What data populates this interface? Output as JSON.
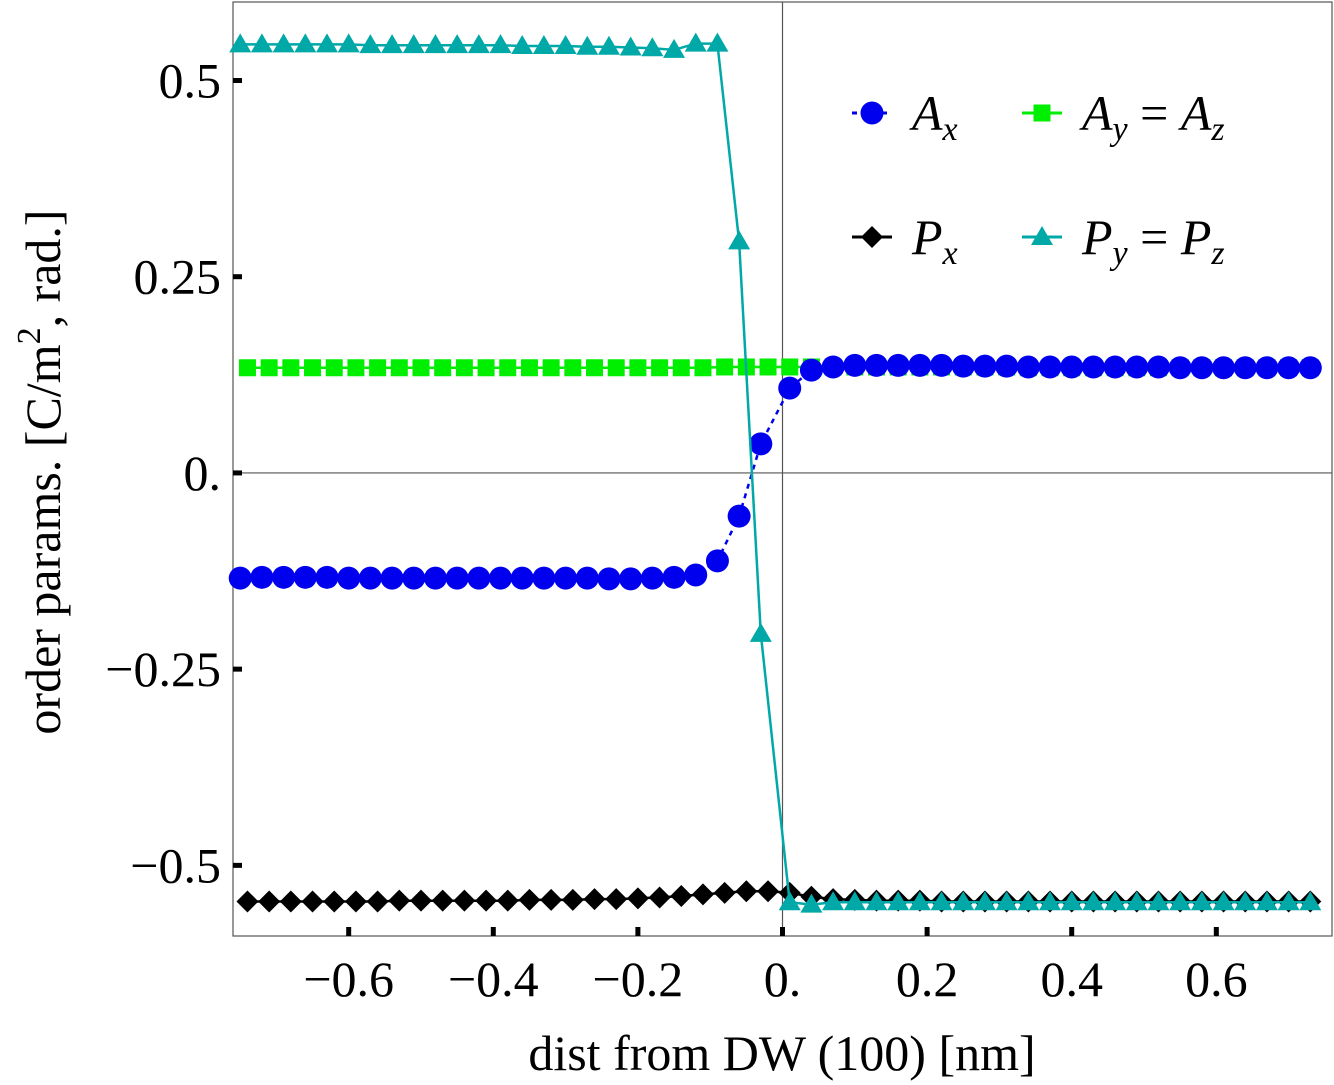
{
  "chart_data": {
    "type": "line",
    "xlabel": "dist from DW (100) [nm]",
    "ylabel": "order params. [C/m",
    "ylabel_sup": "2",
    "ylabel_end": ", rad.]",
    "xlim": [
      -0.76,
      0.76
    ],
    "ylim": [
      -0.59,
      0.6
    ],
    "xticks": [
      {
        "v": -0.6,
        "label": "−0.6"
      },
      {
        "v": -0.4,
        "label": "−0.4"
      },
      {
        "v": -0.2,
        "label": "−0.2"
      },
      {
        "v": 0.0,
        "label": "0."
      },
      {
        "v": 0.2,
        "label": "0.2"
      },
      {
        "v": 0.4,
        "label": "0.4"
      },
      {
        "v": 0.6,
        "label": "0.6"
      }
    ],
    "yticks": [
      {
        "v": 0.5,
        "label": "0.5"
      },
      {
        "v": 0.25,
        "label": "0.25"
      },
      {
        "v": 0.0,
        "label": "0."
      },
      {
        "v": -0.25,
        "label": "−0.25"
      },
      {
        "v": -0.5,
        "label": "−0.5"
      }
    ],
    "grid": false,
    "legend_position": "top-right",
    "series": [
      {
        "key": "ay",
        "legend": {
          "base": "A",
          "sub": "y",
          "op": " = ",
          "base2": "A",
          "sub2": "z"
        },
        "color": "#00ee00",
        "marker": "square",
        "line": "solid",
        "x": [
          -0.74,
          -0.71,
          -0.68,
          -0.65,
          -0.62,
          -0.59,
          -0.56,
          -0.53,
          -0.5,
          -0.47,
          -0.44,
          -0.41,
          -0.38,
          -0.35,
          -0.32,
          -0.29,
          -0.26,
          -0.23,
          -0.2,
          -0.17,
          -0.14,
          -0.11,
          -0.08,
          -0.05,
          -0.02,
          0.01,
          0.04,
          0.07,
          0.1,
          0.13,
          0.16,
          0.19,
          0.22,
          0.25,
          0.28,
          0.31,
          0.34,
          0.37,
          0.4,
          0.43,
          0.46,
          0.49,
          0.52,
          0.55,
          0.58,
          0.61,
          0.64,
          0.67,
          0.7,
          0.73
        ],
        "y": [
          0.134,
          0.134,
          0.134,
          0.134,
          0.134,
          0.134,
          0.134,
          0.134,
          0.134,
          0.134,
          0.134,
          0.134,
          0.134,
          0.134,
          0.134,
          0.134,
          0.134,
          0.134,
          0.134,
          0.134,
          0.134,
          0.134,
          0.135,
          0.135,
          0.135,
          0.135,
          0.135,
          0.135,
          0.135,
          0.135,
          0.135,
          0.135,
          0.135,
          0.135,
          0.135,
          0.135,
          0.134,
          0.134,
          0.134,
          0.134,
          0.134,
          0.134,
          0.134,
          0.134,
          0.134,
          0.134,
          0.134,
          0.134,
          0.134,
          0.134
        ]
      },
      {
        "key": "ax",
        "legend": {
          "base": "A",
          "sub": "x"
        },
        "color": "#0000ee",
        "marker": "circle",
        "line": "dotted",
        "x": [
          -0.75,
          -0.72,
          -0.69,
          -0.66,
          -0.63,
          -0.6,
          -0.57,
          -0.54,
          -0.51,
          -0.48,
          -0.45,
          -0.42,
          -0.39,
          -0.36,
          -0.33,
          -0.3,
          -0.27,
          -0.24,
          -0.21,
          -0.18,
          -0.15,
          -0.12,
          -0.09,
          -0.06,
          -0.03,
          0.01,
          0.04,
          0.07,
          0.1,
          0.13,
          0.16,
          0.19,
          0.22,
          0.25,
          0.28,
          0.31,
          0.34,
          0.37,
          0.4,
          0.43,
          0.46,
          0.49,
          0.52,
          0.55,
          0.58,
          0.61,
          0.64,
          0.67,
          0.7,
          0.73
        ],
        "y": [
          -0.134,
          -0.133,
          -0.133,
          -0.133,
          -0.133,
          -0.134,
          -0.134,
          -0.134,
          -0.134,
          -0.134,
          -0.134,
          -0.134,
          -0.134,
          -0.134,
          -0.134,
          -0.134,
          -0.134,
          -0.135,
          -0.135,
          -0.134,
          -0.133,
          -0.13,
          -0.112,
          -0.055,
          0.037,
          0.108,
          0.131,
          0.135,
          0.137,
          0.137,
          0.137,
          0.137,
          0.137,
          0.136,
          0.136,
          0.136,
          0.135,
          0.135,
          0.135,
          0.135,
          0.135,
          0.135,
          0.135,
          0.134,
          0.134,
          0.134,
          0.134,
          0.134,
          0.134,
          0.134
        ]
      },
      {
        "key": "px",
        "legend": {
          "base": "P",
          "sub": "x"
        },
        "color": "#000000",
        "marker": "diamond",
        "line": "solid",
        "x": [
          -0.74,
          -0.71,
          -0.68,
          -0.65,
          -0.62,
          -0.59,
          -0.56,
          -0.53,
          -0.5,
          -0.47,
          -0.44,
          -0.41,
          -0.38,
          -0.35,
          -0.32,
          -0.29,
          -0.26,
          -0.23,
          -0.2,
          -0.17,
          -0.14,
          -0.11,
          -0.08,
          -0.05,
          -0.02,
          0.01,
          0.04,
          0.07,
          0.1,
          0.13,
          0.16,
          0.19,
          0.22,
          0.25,
          0.28,
          0.31,
          0.34,
          0.37,
          0.4,
          0.43,
          0.46,
          0.49,
          0.52,
          0.55,
          0.58,
          0.61,
          0.64,
          0.67,
          0.7,
          0.73
        ],
        "y": [
          -0.546,
          -0.546,
          -0.546,
          -0.546,
          -0.546,
          -0.546,
          -0.546,
          -0.545,
          -0.545,
          -0.545,
          -0.545,
          -0.545,
          -0.545,
          -0.544,
          -0.544,
          -0.544,
          -0.543,
          -0.543,
          -0.542,
          -0.541,
          -0.539,
          -0.537,
          -0.535,
          -0.533,
          -0.533,
          -0.535,
          -0.54,
          -0.543,
          -0.544,
          -0.545,
          -0.545,
          -0.545,
          -0.546,
          -0.546,
          -0.546,
          -0.546,
          -0.546,
          -0.546,
          -0.546,
          -0.546,
          -0.546,
          -0.546,
          -0.546,
          -0.546,
          -0.546,
          -0.546,
          -0.546,
          -0.546,
          -0.546,
          -0.546
        ]
      },
      {
        "key": "py",
        "legend": {
          "base": "P",
          "sub": "y",
          "op": " = ",
          "base2": "P",
          "sub2": "z"
        },
        "color": "#00a8a8",
        "marker": "triangle",
        "line": "solid",
        "x": [
          -0.75,
          -0.72,
          -0.69,
          -0.66,
          -0.63,
          -0.6,
          -0.57,
          -0.54,
          -0.51,
          -0.48,
          -0.45,
          -0.42,
          -0.39,
          -0.36,
          -0.33,
          -0.3,
          -0.27,
          -0.24,
          -0.21,
          -0.18,
          -0.15,
          -0.12,
          -0.09,
          -0.06,
          -0.03,
          0.01,
          0.04,
          0.07,
          0.1,
          0.13,
          0.16,
          0.19,
          0.22,
          0.25,
          0.28,
          0.31,
          0.34,
          0.37,
          0.4,
          0.43,
          0.46,
          0.49,
          0.52,
          0.55,
          0.58,
          0.61,
          0.64,
          0.67,
          0.7,
          0.73
        ],
        "y": [
          0.546,
          0.546,
          0.546,
          0.546,
          0.546,
          0.546,
          0.545,
          0.545,
          0.545,
          0.545,
          0.545,
          0.545,
          0.545,
          0.544,
          0.544,
          0.544,
          0.543,
          0.543,
          0.542,
          0.541,
          0.539,
          0.547,
          0.547,
          0.295,
          -0.205,
          -0.547,
          -0.55,
          -0.547,
          -0.547,
          -0.547,
          -0.547,
          -0.547,
          -0.547,
          -0.547,
          -0.547,
          -0.547,
          -0.547,
          -0.547,
          -0.547,
          -0.547,
          -0.547,
          -0.547,
          -0.547,
          -0.547,
          -0.547,
          -0.547,
          -0.547,
          -0.547,
          -0.547,
          -0.547
        ]
      }
    ],
    "legend_order": [
      "ax",
      "ay",
      "px",
      "py"
    ]
  }
}
